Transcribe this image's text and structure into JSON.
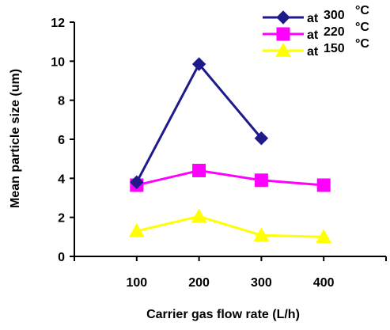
{
  "chart_data": {
    "type": "line",
    "xlabel": "Carrier gas flow rate (L/h)",
    "ylabel": "Mean particle size (um)",
    "x": [
      100,
      200,
      300,
      400
    ],
    "xlim": [
      0,
      500
    ],
    "ylim": [
      0,
      12
    ],
    "yticks": [
      0,
      2,
      4,
      6,
      8,
      10,
      12
    ],
    "xticks": [
      100,
      200,
      300,
      400
    ],
    "grid": false,
    "legend_position": "top-right",
    "series": [
      {
        "name_prefix": "at",
        "name_value": "300",
        "name_unit": "°C",
        "color": "#1f1a8a",
        "marker": "diamond",
        "points": [
          [
            100,
            3.8
          ],
          [
            200,
            9.85
          ],
          [
            300,
            6.05
          ]
        ]
      },
      {
        "name_prefix": "at",
        "name_value": "220",
        "name_unit": "°C",
        "color": "#ff00ff",
        "marker": "square",
        "points": [
          [
            100,
            3.65
          ],
          [
            200,
            4.4
          ],
          [
            300,
            3.9
          ],
          [
            400,
            3.65
          ]
        ]
      },
      {
        "name_prefix": "at",
        "name_value": "150",
        "name_unit": "°C",
        "color": "#ffff00",
        "marker": "triangle",
        "points": [
          [
            100,
            1.3
          ],
          [
            200,
            2.05
          ],
          [
            300,
            1.08
          ],
          [
            400,
            1.0
          ]
        ]
      }
    ]
  }
}
